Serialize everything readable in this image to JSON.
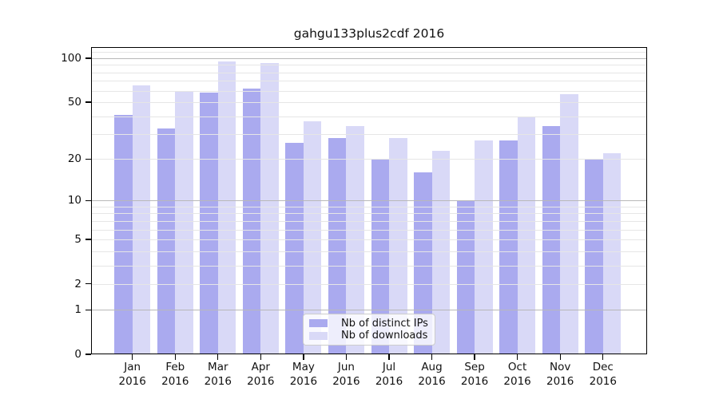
{
  "title": "gahgu133plus2cdf 2016",
  "y_axis": {
    "ticks": [
      {
        "label": "100",
        "value": 100
      },
      {
        "label": "50",
        "value": 50
      },
      {
        "label": "20",
        "value": 20
      },
      {
        "label": "10",
        "value": 10
      },
      {
        "label": "5",
        "value": 5
      },
      {
        "label": "2",
        "value": 2
      },
      {
        "label": "1",
        "value": 1
      },
      {
        "label": "0",
        "value": 0
      }
    ]
  },
  "x_axis": {
    "year": "2016",
    "months": [
      "Jan",
      "Feb",
      "Mar",
      "Apr",
      "May",
      "Jun",
      "Jul",
      "Aug",
      "Sep",
      "Oct",
      "Nov",
      "Dec"
    ]
  },
  "legend": {
    "items": [
      {
        "label": "Nb of distinct IPs",
        "color": "#aaaaef"
      },
      {
        "label": "Nb of downloads",
        "color": "#d9d9f7"
      }
    ]
  },
  "colors": {
    "bar_distinct_ips": "#aaaaef",
    "bar_downloads": "#d9d9f7",
    "grid_minor": "#e6e6e6",
    "grid_major": "#b8b8b8",
    "axis": "#000000"
  },
  "chart_data": {
    "type": "bar",
    "title": "gahgu133plus2cdf 2016",
    "categories": [
      "Jan 2016",
      "Feb 2016",
      "Mar 2016",
      "Apr 2016",
      "May 2016",
      "Jun 2016",
      "Jul 2016",
      "Aug 2016",
      "Sep 2016",
      "Oct 2016",
      "Nov 2016",
      "Dec 2016"
    ],
    "series": [
      {
        "name": "Nb of distinct IPs",
        "color": "#aaaaef",
        "values": [
          41,
          33,
          58,
          62,
          26,
          28,
          20,
          16,
          10,
          27,
          34,
          20
        ]
      },
      {
        "name": "Nb of downloads",
        "color": "#d9d9f7",
        "values": [
          65,
          59,
          95,
          93,
          37,
          34,
          28,
          23,
          27,
          39,
          57,
          22
        ]
      }
    ],
    "yscale": "log1p",
    "ylim": [
      0,
      119
    ],
    "yticks": [
      100,
      50,
      20,
      10,
      5,
      2,
      1,
      0
    ],
    "grid": "horizontal log minor+major lines",
    "legend_position": "lower center"
  }
}
